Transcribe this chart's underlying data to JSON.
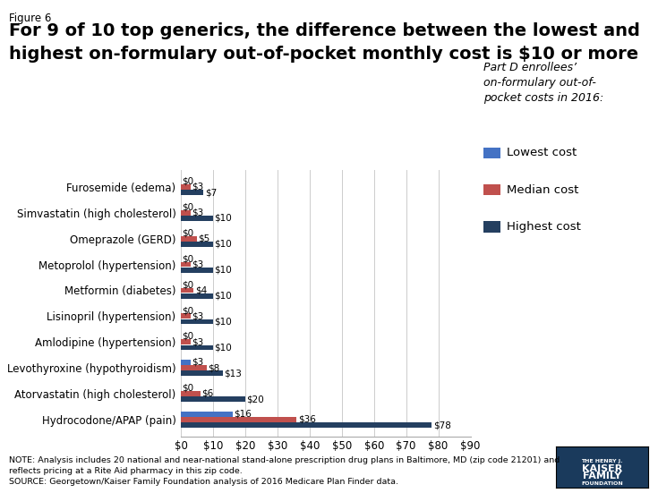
{
  "categories": [
    "Furosemide (edema)",
    "Simvastatin (high cholesterol)",
    "Omeprazole (GERD)",
    "Metoprolol (hypertension)",
    "Metformin (diabetes)",
    "Lisinopril (hypertension)",
    "Amlodipine (hypertension)",
    "Levothyroxine (hypothyroidism)",
    "Atorvastatin (high cholesterol)",
    "Hydrocodone/APAP (pain)"
  ],
  "lowest": [
    0,
    0,
    0,
    0,
    0,
    0,
    0,
    3,
    0,
    16
  ],
  "median": [
    3,
    3,
    5,
    3,
    4,
    3,
    3,
    8,
    6,
    36
  ],
  "highest": [
    7,
    10,
    10,
    10,
    10,
    10,
    10,
    13,
    20,
    78
  ],
  "color_lowest": "#4472c4",
  "color_median": "#c0504d",
  "color_highest": "#243f60",
  "xlim": [
    0,
    90
  ],
  "xticks": [
    0,
    10,
    20,
    30,
    40,
    50,
    60,
    70,
    80,
    90
  ],
  "xtick_labels": [
    "$0",
    "$10",
    "$20",
    "$30",
    "$40",
    "$50",
    "$60",
    "$70",
    "$80",
    "$90"
  ],
  "figure_label": "Figure 6",
  "title_line1": "For 9 of 10 top generics, the difference between the lowest and",
  "title_line2": "highest on-formulary out-of-pocket monthly cost is $10 or more",
  "legend_title": "Part D enrollees’\non-formulary out-of-\npocket costs in 2016:",
  "legend_items": [
    "Lowest cost",
    "Median cost",
    "Highest cost"
  ],
  "note_line1": "NOTE: Analysis includes 20 national and near-national stand-alone prescription drug plans in Baltimore, MD (zip code 21201) and",
  "note_line2": "reflects pricing at a Rite Aid pharmacy in this zip code.",
  "source_line": "SOURCE: Georgetown/Kaiser Family Foundation analysis of 2016 Medicare Plan Finder data.",
  "bar_height": 0.2,
  "bar_gap": 0.015
}
